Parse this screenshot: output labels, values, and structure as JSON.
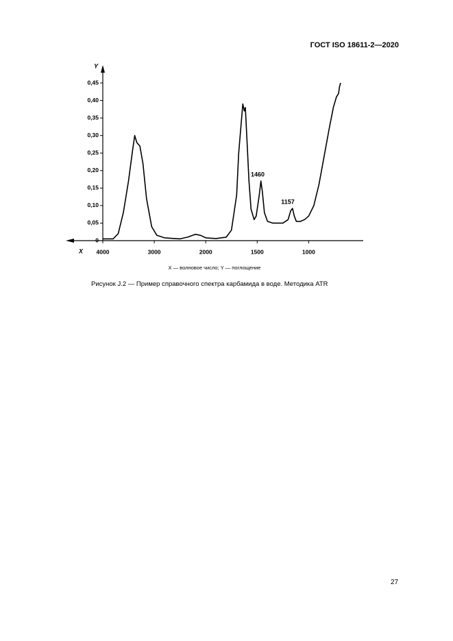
{
  "header": {
    "title": "ГОСТ ISO 18611-2—2020"
  },
  "chart_data": {
    "type": "line",
    "y_label": "Y",
    "x_label": "X",
    "axis_note": "X — волновое число; Y — поглощение",
    "annotations": [
      "1460",
      "1157"
    ],
    "x": [
      4000,
      3800,
      3700,
      3600,
      3500,
      3420,
      3380,
      3340,
      3280,
      3220,
      3150,
      3050,
      2950,
      2800,
      2500,
      2350,
      2200,
      2100,
      2000,
      1900,
      1800,
      1750,
      1700,
      1680,
      1660,
      1640,
      1625,
      1615,
      1600,
      1580,
      1560,
      1530,
      1510,
      1480,
      1464,
      1450,
      1430,
      1400,
      1350,
      1300,
      1250,
      1200,
      1175,
      1157,
      1140,
      1120,
      1080,
      1040,
      1000,
      950,
      900,
      850,
      800,
      760,
      730,
      710,
      700,
      690
    ],
    "series": [
      {
        "color": "#000000",
        "values": [
          0.005,
          0.005,
          0.02,
          0.08,
          0.17,
          0.26,
          0.3,
          0.28,
          0.27,
          0.22,
          0.12,
          0.04,
          0.015,
          0.008,
          0.005,
          0.01,
          0.018,
          0.015,
          0.008,
          0.006,
          0.01,
          0.03,
          0.13,
          0.25,
          0.32,
          0.39,
          0.37,
          0.38,
          0.29,
          0.17,
          0.09,
          0.06,
          0.07,
          0.13,
          0.17,
          0.14,
          0.08,
          0.055,
          0.05,
          0.05,
          0.05,
          0.06,
          0.085,
          0.092,
          0.07,
          0.055,
          0.055,
          0.06,
          0.07,
          0.1,
          0.16,
          0.24,
          0.32,
          0.38,
          0.41,
          0.42,
          0.44,
          0.45
        ]
      }
    ],
    "xlim": [
      4000,
      470
    ],
    "xticks": [
      4000,
      3000,
      2000,
      1500,
      1000
    ],
    "ylim": [
      0,
      0.5
    ],
    "yticks": [
      0,
      {
        "value": 0.05,
        "label": "0,05"
      },
      {
        "value": 0.1,
        "label": "0,10"
      },
      {
        "value": 0.15,
        "label": "0,15"
      },
      {
        "value": 0.2,
        "label": "0,20"
      },
      {
        "value": 0.25,
        "label": "0,25"
      },
      {
        "value": 0.3,
        "label": "0,30"
      },
      {
        "value": 0.35,
        "label": "0,35"
      },
      {
        "value": 0.4,
        "label": "0,40"
      },
      {
        "value": 0.45,
        "label": "0,45"
      }
    ]
  },
  "caption": "Рисунок J.2 — Пример справочного спектра карбамида в воде. Методика ATR",
  "page_number": "27"
}
